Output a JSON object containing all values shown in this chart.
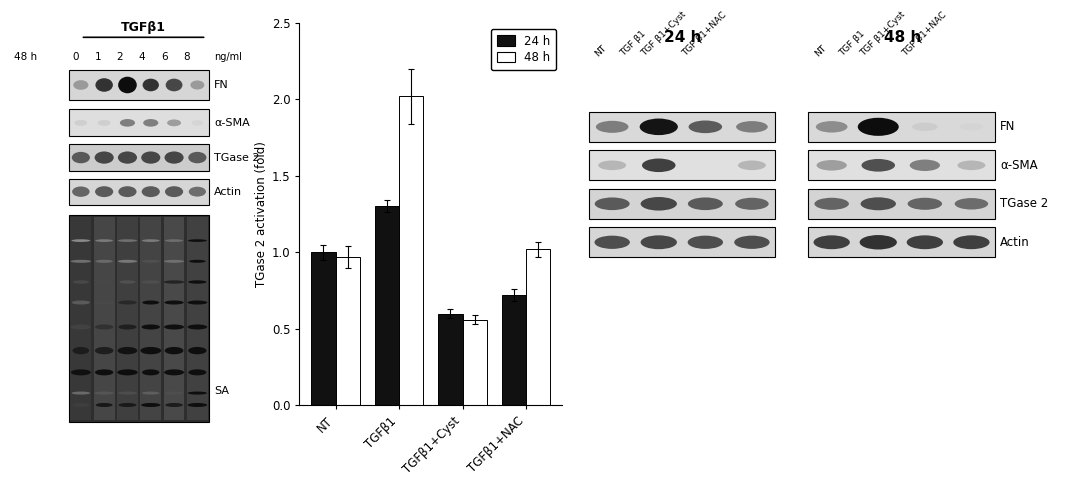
{
  "bar_data": {
    "categories": [
      "NT",
      "TGFβ1",
      "TGFβ1+Cyst",
      "TGFβ1+NAC"
    ],
    "values_24h": [
      1.0,
      1.3,
      0.6,
      0.72
    ],
    "values_48h": [
      0.97,
      2.02,
      0.56,
      1.02
    ],
    "errors_24h": [
      0.05,
      0.04,
      0.03,
      0.04
    ],
    "errors_48h": [
      0.07,
      0.18,
      0.03,
      0.05
    ],
    "color_24h": "#111111",
    "color_48h": "#ffffff",
    "ylabel": "TGase 2 activation (fold)",
    "ylim": [
      0.0,
      2.5
    ],
    "yticks": [
      0.0,
      0.5,
      1.0,
      1.5,
      2.0,
      2.5
    ],
    "legend_24h": "24 h",
    "legend_48h": "48 h"
  },
  "left_panel": {
    "title": "TGFβ1",
    "time_label": "48 h",
    "conc_labels": [
      "0",
      "1",
      "2",
      "4",
      "6",
      "8"
    ],
    "conc_unit": "ng/ml",
    "band_labels": [
      "FN",
      "α-SMA",
      "TGase 2",
      "Actin",
      "SA"
    ]
  },
  "right_panel": {
    "time_labels_24": "24 h",
    "time_labels_48": "48 h",
    "group_labels": [
      "NT",
      "TGF β1",
      "TGF β1+Cyst",
      "TGF β1+NAC"
    ],
    "band_labels": [
      "FN",
      "α-SMA",
      "TGase 2",
      "Actin"
    ]
  },
  "figure_bg": "#ffffff"
}
